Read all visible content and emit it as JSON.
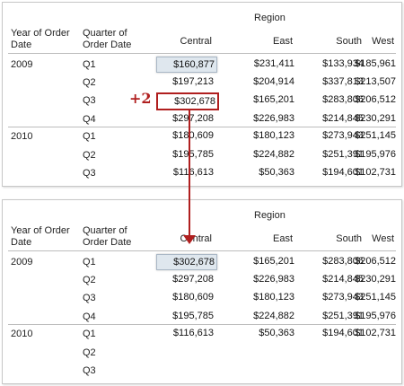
{
  "columns": {
    "year": "Year of Order Date",
    "quarter": "Quarter of Order Date",
    "region": "Region",
    "regions": [
      "Central",
      "East",
      "South",
      "West"
    ]
  },
  "annotation": {
    "offset_label": "+2",
    "arrow_color": "#b01f1f",
    "highlight_color": "#dfe7ee"
  },
  "top_table": {
    "rows": [
      {
        "year": "2009",
        "quarter": "Q1",
        "values": [
          "$160,877",
          "$231,411",
          "$133,934",
          "$185,961"
        ]
      },
      {
        "year": "",
        "quarter": "Q2",
        "values": [
          "$197,213",
          "$204,914",
          "$337,813",
          "$213,507"
        ]
      },
      {
        "year": "",
        "quarter": "Q3",
        "values": [
          "$302,678",
          "$165,201",
          "$283,806",
          "$206,512"
        ]
      },
      {
        "year": "",
        "quarter": "Q4",
        "values": [
          "$297,208",
          "$226,983",
          "$214,845",
          "$230,291"
        ]
      },
      {
        "year": "2010",
        "quarter": "Q1",
        "values": [
          "$180,609",
          "$180,123",
          "$273,943",
          "$251,145"
        ]
      },
      {
        "year": "",
        "quarter": "Q2",
        "values": [
          "$195,785",
          "$224,882",
          "$251,391",
          "$195,976"
        ]
      },
      {
        "year": "",
        "quarter": "Q3",
        "values": [
          "$116,613",
          "$50,363",
          "$194,601",
          "$102,731"
        ]
      }
    ]
  },
  "bottom_table": {
    "rows": [
      {
        "year": "2009",
        "quarter": "Q1",
        "values": [
          "$302,678",
          "$165,201",
          "$283,806",
          "$206,512"
        ]
      },
      {
        "year": "",
        "quarter": "Q2",
        "values": [
          "$297,208",
          "$226,983",
          "$214,845",
          "$230,291"
        ]
      },
      {
        "year": "",
        "quarter": "Q3",
        "values": [
          "$180,609",
          "$180,123",
          "$273,943",
          "$251,145"
        ]
      },
      {
        "year": "",
        "quarter": "Q4",
        "values": [
          "$195,785",
          "$224,882",
          "$251,391",
          "$195,976"
        ]
      },
      {
        "year": "2010",
        "quarter": "Q1",
        "values": [
          "$116,613",
          "$50,363",
          "$194,601",
          "$102,731"
        ]
      },
      {
        "year": "",
        "quarter": "Q2",
        "values": [
          "",
          "",
          "",
          ""
        ]
      },
      {
        "year": "",
        "quarter": "Q3",
        "values": [
          "",
          "",
          "",
          ""
        ]
      }
    ]
  }
}
